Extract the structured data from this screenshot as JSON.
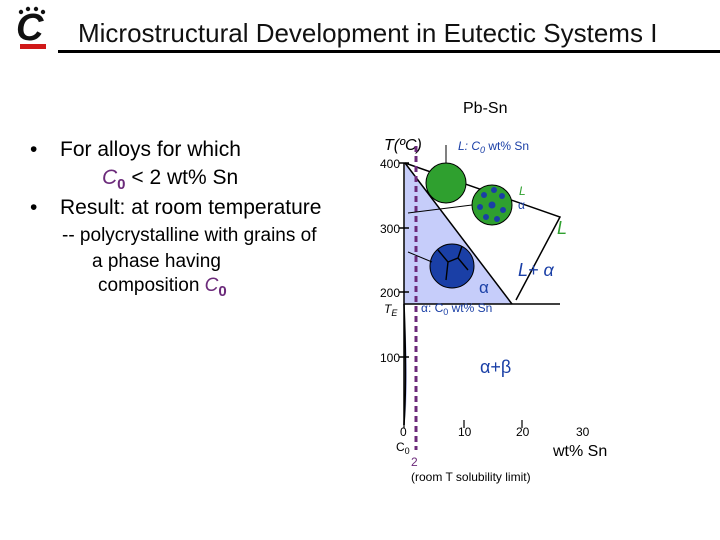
{
  "header": {
    "title": "Microstructural Development in Eutectic Systems I",
    "logo_letter": "C"
  },
  "bullets": {
    "item1": "For alloys for which",
    "item1_cont_prefix": "C",
    "item1_cont_sub": "0",
    "item1_cont_rest": " < 2 wt% Sn",
    "item2": "Result: at room temperature",
    "sub_line1": "-- polycrystalline with grains of",
    "sub_line2": "a phase having",
    "sub_line3_text": "composition ",
    "sub_line3_c": "C",
    "sub_line3_sub": "0",
    "bullet_char": "•"
  },
  "diagram": {
    "system": "Pb-Sn",
    "y_label": "T(ºC)",
    "y_ticks": [
      "400",
      "300",
      "200",
      "100"
    ],
    "te_label": "T",
    "te_sub": "E",
    "x_ticks": [
      "0",
      "10",
      "20",
      "30"
    ],
    "x_unit": "wt% Sn",
    "c0_label": "C",
    "c0_sub": "0",
    "c0_value": "2",
    "c0_note": "(room T solubility limit)",
    "label_liquid_top": "L:  C",
    "label_liquid_top_sub": "0",
    "label_liquid_top_rest": " wt% Sn",
    "label_L_small": "L",
    "label_alpha_small": "α",
    "label_L_big": "L",
    "label_L_plus_alpha": "L+ α",
    "label_alpha": "α",
    "label_alpha_comp": "α:  C",
    "label_alpha_comp_sub": "0",
    "label_alpha_comp_rest": " wt% Sn",
    "label_alpha_beta": "α+β",
    "colors": {
      "liquid_grain": "#2fa02f",
      "alpha_grain": "#1a3fa6",
      "alpha_region": "#c6cdfa",
      "accent": "#6b2a7a",
      "phase_label": "#1a3fa6",
      "liquid_label": "#2fa02f"
    }
  }
}
